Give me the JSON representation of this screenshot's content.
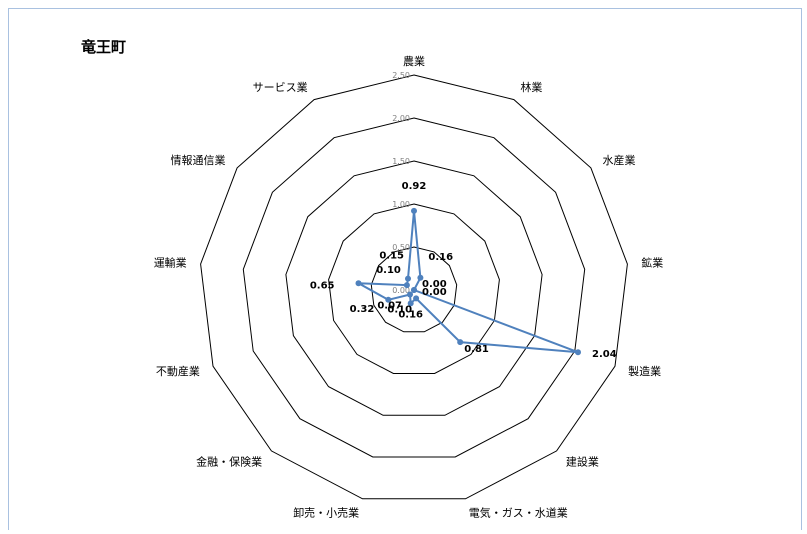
{
  "chart_data": {
    "type": "radar",
    "title": "竜王町",
    "categories": [
      "農業",
      "林業",
      "水産業",
      "鉱業",
      "製造業",
      "建設業",
      "電気・ガス・水道業",
      "卸売・小売業",
      "金融・保険業",
      "不動産業",
      "運輸業",
      "情報通信業",
      "サービス業"
    ],
    "series": [
      {
        "values": [
          0.92,
          0.16,
          0.0,
          0.0,
          2.04,
          0.81,
          0.1,
          0.16,
          0.07,
          0.32,
          0.65,
          0.1,
          0.15
        ],
        "color": "#4f81bd"
      }
    ],
    "data_labels": [
      "0.92",
      "0.16",
      "0.00",
      "0.00",
      "2.04",
      "0.81",
      "0.10",
      "0.16",
      "0.07",
      "0.32",
      "0.65",
      "0.10",
      "0.15"
    ],
    "rlim": [
      0,
      2.5
    ],
    "rticks": [
      "0.00",
      "0.50",
      "1.00",
      "1.50",
      "2.00",
      "2.50"
    ],
    "grid": true,
    "legend": "none"
  }
}
